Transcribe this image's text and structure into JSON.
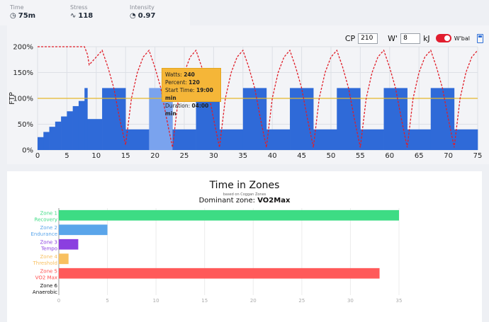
{
  "stats": {
    "time": {
      "label": "Time",
      "value": "75m",
      "icon": "clock-icon"
    },
    "stress": {
      "label": "Stress",
      "value": "118",
      "icon": "pulse-icon"
    },
    "intensity": {
      "label": "Intensity",
      "value": "0.97",
      "icon": "gauge-icon"
    }
  },
  "controls": {
    "cp_label": "CP",
    "cp_value": "210",
    "wprime_label": "W'",
    "wprime_value": "8",
    "wprime_unit": "kJ",
    "wbal_label": "W'bal",
    "toggle_on": true
  },
  "tooltip": {
    "watts_label": "Watts:",
    "watts": "240",
    "percent_label": "Percent:",
    "percent": "120",
    "start_label": "Start Time:",
    "start": "19:00 min",
    "duration_label": "Duration:",
    "duration": "04:00 min"
  },
  "workout_chart": {
    "type": "area",
    "ylabel": "FTP",
    "yticks": [
      "0%",
      "50%",
      "100%",
      "150%",
      "200%"
    ],
    "ylim": [
      0,
      200
    ],
    "xlim": [
      0,
      75
    ],
    "xticks": [
      "0",
      "5",
      "10",
      "15",
      "20",
      "25",
      "30",
      "35",
      "40",
      "45",
      "50",
      "55",
      "60",
      "65",
      "70",
      "75"
    ],
    "reference_line_percent": 100,
    "colors": {
      "bar": "#2f6ad8",
      "highlight": "#7aa3ee",
      "wbal": "#e01e28",
      "ftp_line": "#e5b82c"
    },
    "segments": [
      {
        "start": 0,
        "end": 1,
        "percent": 25
      },
      {
        "start": 1,
        "end": 2,
        "percent": 35
      },
      {
        "start": 2,
        "end": 3,
        "percent": 45
      },
      {
        "start": 3,
        "end": 4,
        "percent": 55
      },
      {
        "start": 4,
        "end": 5,
        "percent": 65
      },
      {
        "start": 5,
        "end": 6,
        "percent": 75
      },
      {
        "start": 6,
        "end": 7,
        "percent": 85
      },
      {
        "start": 7,
        "end": 8,
        "percent": 95
      },
      {
        "start": 8,
        "end": 8.5,
        "percent": 120
      },
      {
        "start": 8.5,
        "end": 11,
        "percent": 60
      },
      {
        "start": 11,
        "end": 15,
        "percent": 120
      },
      {
        "start": 15,
        "end": 19,
        "percent": 40
      },
      {
        "start": 19,
        "end": 23,
        "percent": 120,
        "highlight": true
      },
      {
        "start": 23,
        "end": 27,
        "percent": 40
      },
      {
        "start": 27,
        "end": 31,
        "percent": 120
      },
      {
        "start": 31,
        "end": 35,
        "percent": 40
      },
      {
        "start": 35,
        "end": 39,
        "percent": 120
      },
      {
        "start": 39,
        "end": 43,
        "percent": 40
      },
      {
        "start": 43,
        "end": 47,
        "percent": 120
      },
      {
        "start": 47,
        "end": 51,
        "percent": 40
      },
      {
        "start": 51,
        "end": 55,
        "percent": 120
      },
      {
        "start": 55,
        "end": 59,
        "percent": 40
      },
      {
        "start": 59,
        "end": 63,
        "percent": 120
      },
      {
        "start": 63,
        "end": 67,
        "percent": 40
      },
      {
        "start": 67,
        "end": 71,
        "percent": 120
      },
      {
        "start": 71,
        "end": 75,
        "percent": 40
      }
    ],
    "wbal_curve": [
      [
        0,
        200
      ],
      [
        8,
        200
      ],
      [
        8.5,
        185
      ],
      [
        8.8,
        165
      ],
      [
        10,
        180
      ],
      [
        11,
        193
      ],
      [
        12,
        160
      ],
      [
        13,
        120
      ],
      [
        14,
        60
      ],
      [
        15,
        10
      ],
      [
        16,
        100
      ],
      [
        17,
        150
      ],
      [
        18,
        180
      ],
      [
        19,
        193
      ],
      [
        20,
        160
      ],
      [
        21,
        120
      ],
      [
        22,
        60
      ],
      [
        23,
        5
      ],
      [
        24,
        100
      ],
      [
        25,
        150
      ],
      [
        26,
        180
      ],
      [
        27,
        193
      ],
      [
        28,
        160
      ],
      [
        29,
        120
      ],
      [
        30,
        60
      ],
      [
        31,
        5
      ],
      [
        32,
        100
      ],
      [
        33,
        150
      ],
      [
        34,
        180
      ],
      [
        35,
        193
      ],
      [
        36,
        160
      ],
      [
        37,
        120
      ],
      [
        38,
        60
      ],
      [
        39,
        5
      ],
      [
        40,
        100
      ],
      [
        41,
        150
      ],
      [
        42,
        180
      ],
      [
        43,
        193
      ],
      [
        44,
        160
      ],
      [
        45,
        120
      ],
      [
        46,
        60
      ],
      [
        47,
        5
      ],
      [
        48,
        100
      ],
      [
        49,
        150
      ],
      [
        50,
        180
      ],
      [
        51,
        193
      ],
      [
        52,
        160
      ],
      [
        53,
        120
      ],
      [
        54,
        60
      ],
      [
        55,
        5
      ],
      [
        56,
        100
      ],
      [
        57,
        150
      ],
      [
        58,
        180
      ],
      [
        59,
        193
      ],
      [
        60,
        160
      ],
      [
        61,
        120
      ],
      [
        62,
        60
      ],
      [
        63,
        5
      ],
      [
        64,
        100
      ],
      [
        65,
        150
      ],
      [
        66,
        180
      ],
      [
        67,
        193
      ],
      [
        68,
        160
      ],
      [
        69,
        120
      ],
      [
        70,
        60
      ],
      [
        71,
        5
      ],
      [
        72,
        100
      ],
      [
        73,
        150
      ],
      [
        74,
        180
      ],
      [
        75,
        193
      ]
    ]
  },
  "zones": {
    "title": "Time in Zones",
    "subtitle": "based on Coggan Zones",
    "dominant_label": "Dominant zone:",
    "dominant_value": "VO2Max"
  },
  "chart_data": {
    "type": "bar",
    "orientation": "horizontal",
    "categories": [
      "Zone 1 Recovery",
      "Zone 2 Endurance",
      "Zone 3 Tempo",
      "Zone 4 Threshold",
      "Zone 5 VO2 Max",
      "Zone 6 Anaerobic"
    ],
    "category_lines": [
      [
        "Zone 1",
        "Recovery"
      ],
      [
        "Zone 2",
        "Endurance"
      ],
      [
        "Zone 3",
        "Tempo"
      ],
      [
        "Zone 4",
        "Threshold"
      ],
      [
        "Zone 5",
        "VO2 Max"
      ],
      [
        "Zone 6",
        "Anaerobic"
      ]
    ],
    "values": [
      35,
      5,
      2,
      1,
      33,
      0
    ],
    "colors": [
      "#3ddc84",
      "#5aa5ea",
      "#8b3fe0",
      "#f8c060",
      "#ff5a5a",
      "#222222"
    ],
    "label_colors": [
      "#3ddc84",
      "#5aa5ea",
      "#8b3fe0",
      "#f8c060",
      "#ff4d4d",
      "#111111"
    ],
    "xlim": [
      0,
      35
    ],
    "xticks": [
      "0",
      "5",
      "10",
      "15",
      "20",
      "25",
      "30",
      "35"
    ],
    "grid": true
  }
}
